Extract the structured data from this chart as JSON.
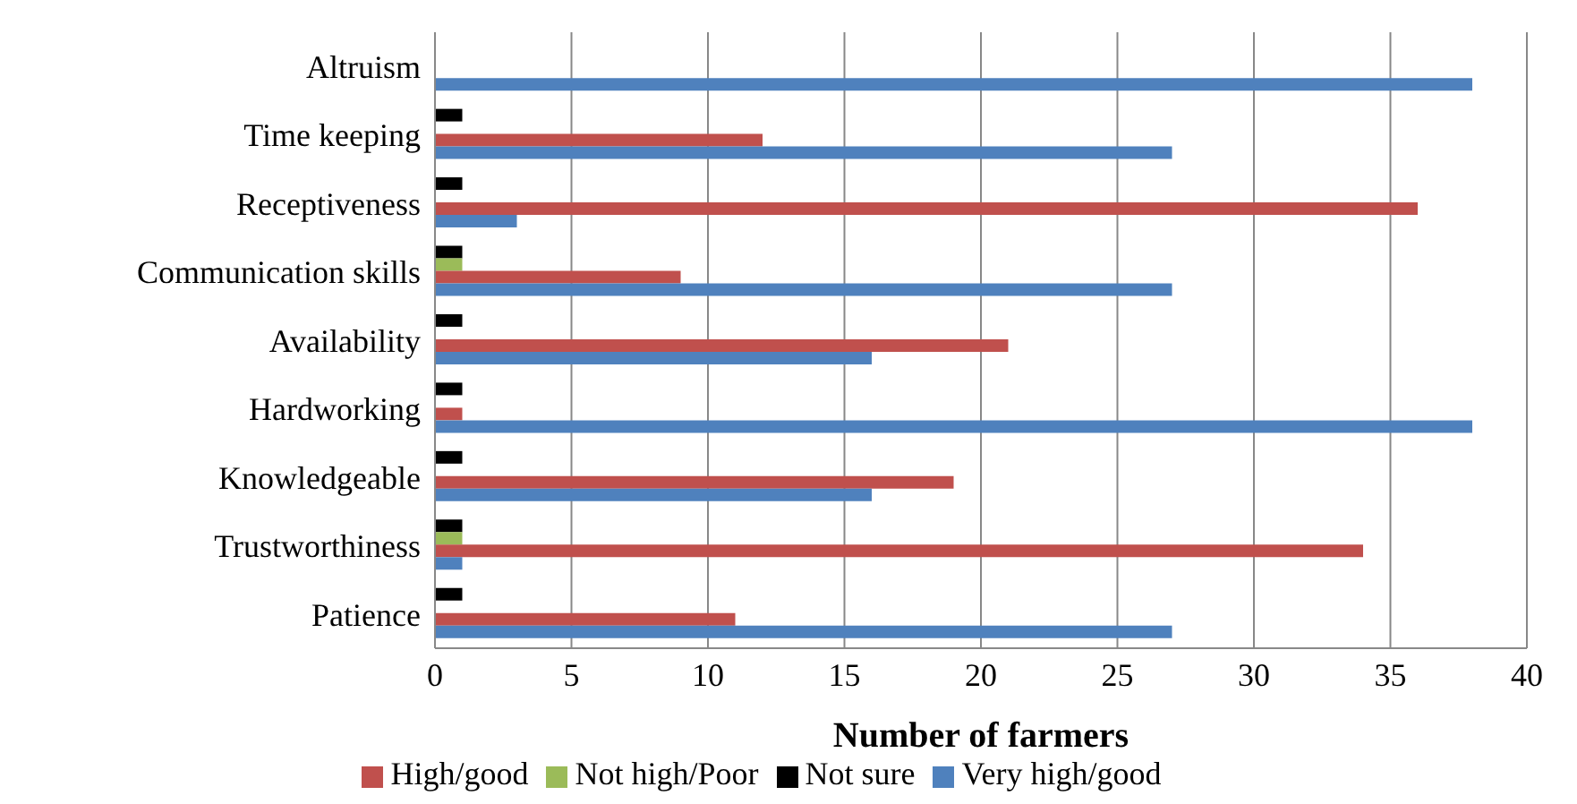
{
  "chart_data": {
    "type": "bar",
    "orientation": "horizontal",
    "xlabel": "Number of farmers",
    "categories": [
      "Altruism",
      "Time keeping",
      "Receptiveness",
      "Communication skills",
      "Availability",
      "Hardworking",
      "Knowledgeable",
      "Trustworthiness",
      "Patience"
    ],
    "series": [
      {
        "name": "Not sure",
        "color": "#000000",
        "values": [
          0,
          1,
          1,
          1,
          1,
          1,
          1,
          1,
          1
        ]
      },
      {
        "name": "Not high/Poor",
        "color": "#9bbb59",
        "values": [
          0,
          0,
          0,
          1,
          0,
          0,
          0,
          1,
          0
        ]
      },
      {
        "name": "High/good",
        "color": "#c0504d",
        "values": [
          0,
          12,
          36,
          9,
          21,
          1,
          19,
          34,
          11
        ]
      },
      {
        "name": "Very high/good",
        "color": "#4f81bd",
        "values": [
          38,
          27,
          3,
          27,
          16,
          38,
          16,
          1,
          27
        ]
      }
    ],
    "xlim": [
      0,
      40
    ],
    "xticks": [
      0,
      5,
      10,
      15,
      20,
      25,
      30,
      35,
      40
    ],
    "grid": "x",
    "legend": "bottom"
  }
}
